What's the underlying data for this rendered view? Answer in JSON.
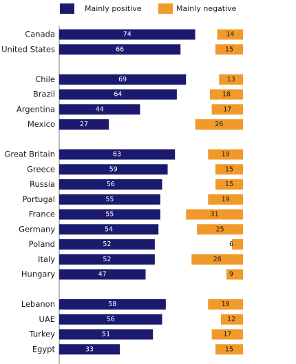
{
  "chart_data": {
    "type": "bar",
    "orientation": "horizontal",
    "categories": [
      "Canada",
      "United States",
      null,
      "Chile",
      "Brazil",
      "Argentina",
      "Mexico",
      null,
      "Great Britain",
      "Greece",
      "Russia",
      "Portugal",
      "France",
      "Germany",
      "Poland",
      "Italy",
      "Hungary",
      null,
      "Lebanon",
      "UAE",
      "Turkey",
      "Egypt"
    ],
    "series": [
      {
        "name": "Mainly positive",
        "color": "#1b1a6f",
        "values": [
          74,
          66,
          null,
          69,
          64,
          44,
          27,
          null,
          63,
          59,
          56,
          55,
          55,
          54,
          52,
          52,
          47,
          null,
          58,
          56,
          51,
          33
        ]
      },
      {
        "name": "Mainly negative",
        "color": "#f19a2a",
        "values": [
          14,
          15,
          null,
          13,
          18,
          17,
          26,
          null,
          19,
          15,
          15,
          19,
          31,
          25,
          6,
          28,
          9,
          null,
          19,
          12,
          17,
          15
        ]
      }
    ]
  }
}
